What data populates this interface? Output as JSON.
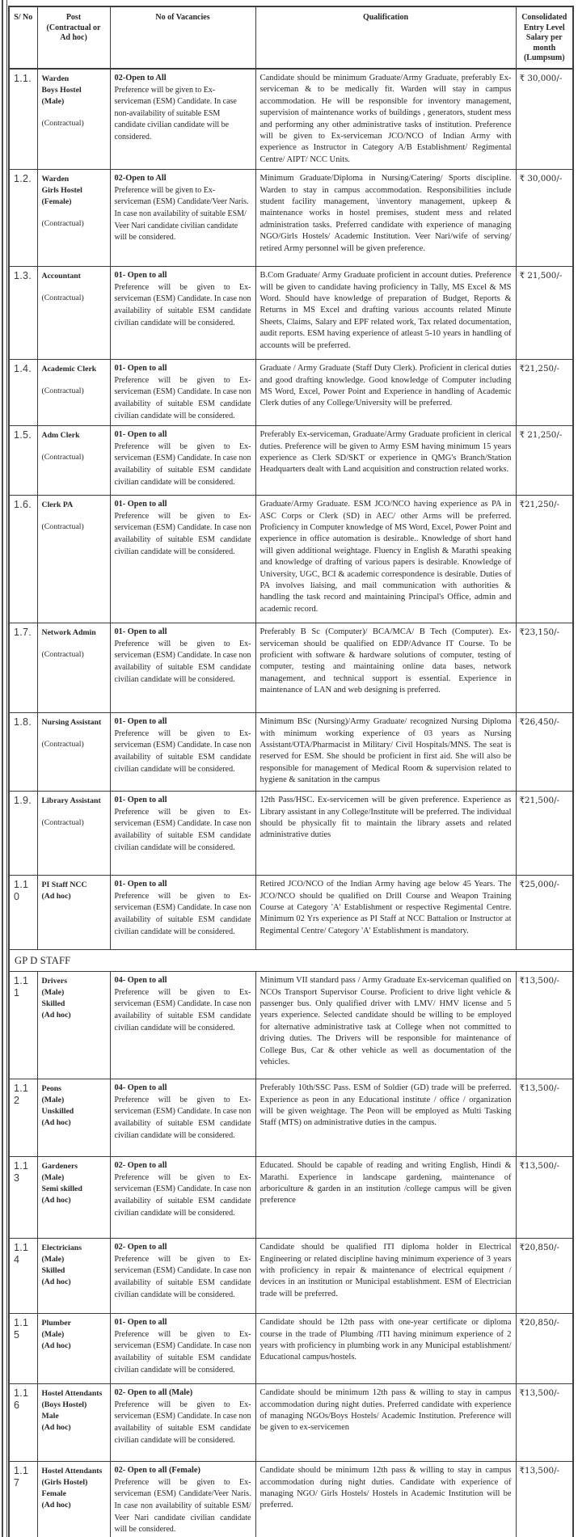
{
  "table": {
    "headers": {
      "sno": "S/ No",
      "post": "Post\n(Contractual or\nAd hoc)",
      "vacancies": "No of Vacancies",
      "qualification": "Qualification",
      "salary": "Consolidated\nEntry Level\nSalary per\nmonth\n(Lumpsum)"
    },
    "rows": [
      {
        "sno": "1.1.",
        "post": {
          "lines": [
            "Warden",
            "Boys Hostel",
            "(Male)"
          ],
          "note": "(Contractual)"
        },
        "vacancies": {
          "title": "02-Open to All",
          "body": "Preference will be given to Ex-serviceman (ESM) Candidate. In case non-availability of suitable ESM candidate civilian candidate will be considered."
        },
        "qualification": "Candidate should be minimum Graduate/Army Graduate, preferably Ex-serviceman & to be medically fit. Warden will stay in campus accommodation.  He will be responsible for inventory management, supervision of maintenance works of buildings , generators, student mess and performing any other administrative tasks of institution. Preference will be given to Ex-serviceman JCO/NCO of Indian Army with experience as Instructor in Category A/B Establishment/ Regimental Centre/ AIPT/ NCC Units.",
        "salary": "₹ 30,000/-"
      },
      {
        "sno": "1.2.",
        "post": {
          "lines": [
            "Warden",
            "Girls Hostel",
            "(Female)"
          ],
          "note": "(Contractual)"
        },
        "vacancies": {
          "title": "02-Open to All",
          "body": "Preference will be given to Ex-serviceman (ESM) Candidate/Veer Naris.  In case non availability of suitable ESM/ Veer Nari candidate civilian candidate will be considered."
        },
        "qualification": "Minimum Graduate/Diploma in Nursing/Catering/ Sports discipline. Warden to stay in campus accommodation. Responsibilities include student facility management, \\inventory management, upkeep & maintenance works in hostel premises, student mess and related administration tasks.  Preferred candidate with experience of managing NGO/Girls Hostels/ Academic Institution.  Veer Nari/wife of serving/ retired Army personnel will be given preference.",
        "salary": "₹ 30,000/-"
      },
      {
        "sno": "1.3.",
        "post": {
          "lines": [
            "Accountant"
          ],
          "note": "(Contractual)"
        },
        "vacancies": {
          "title": "01- Open to all",
          "body": "Preference will be given to Ex-serviceman (ESM) Candidate.  In case non availability of suitable ESM candidate civilian candidate will be considered."
        },
        "qualification": "B.Com Graduate/ Army Graduate proficient in account duties. Preference will be given to  candidate having proficiency in Tally, MS Excel & MS Word.  Should have knowledge of preparation of Budget, Reports & Returns in MS Excel and drafting various accounts related Minute Sheets, Claims, Salary and EPF related work, Tax related documentation, audit reports. ESM having experience of atleast 5-10 years in handling of accounts will be preferred.",
        "salary": "₹ 21,500/-"
      },
      {
        "sno": "1.4.",
        "post": {
          "lines": [
            "Academic Clerk"
          ],
          "note": "(Contractual)"
        },
        "vacancies": {
          "title": "01- Open to all",
          "body": "Preference will be given to Ex-serviceman (ESM) Candidate.  In case non availability of suitable ESM candidate civilian candidate will be considered."
        },
        "qualification": "Graduate / Army Graduate (Staff Duty Clerk).  Proficient in clerical duties and good drafting knowledge.  Good knowledge of Computer including MS Word, Excel, Power Point and  Experience in handling of Academic Clerk duties of any College/University will be preferred.",
        "salary": "₹21,250/-"
      },
      {
        "sno": "1.5.",
        "post": {
          "lines": [
            "Adm Clerk"
          ],
          "note": "(Contractual)"
        },
        "vacancies": {
          "title": "01- Open to all",
          "body": "Preference will be given to Ex-serviceman (ESM) Candidate.  In case non availability of suitable ESM candidate civilian candidate will be considered."
        },
        "qualification": "Preferably Ex-serviceman, Graduate/Army Graduate proficient in clerical duties.  Preference will be given to Army ESM having minimum 15 years experience as Clerk SD/SKT or experience in QMG's Branch/Station Headquarters dealt with Land acquisition and construction related works.",
        "salary": "₹ 21,250/-"
      },
      {
        "sno": "1.6.",
        "post": {
          "lines": [
            "Clerk PA"
          ],
          "note": "(Contractual)"
        },
        "vacancies": {
          "title": "01- Open to all",
          "body": "Preference will be given to Ex-serviceman (ESM) Candidate.  In case non availability of suitable ESM candidate civilian candidate will be considered."
        },
        "qualification": "Graduate/Army Graduate. ESM JCO/NCO having experience as PA in ASC Corps or Clerk (SD) in AEC/ other Arms will be preferred. Proficiency in Computer knowledge of MS Word, Excel, Power Point and experience in office automation is desirable..  Knowledge of short hand will given additional weightage. Fluency in English & Marathi speaking and knowledge of drafting of various papers is desirable. Knowledge of University, UGC, BCI & academic correspondence is desirable.  Duties of PA involves liaising, and mail communication with authorities &  handling the task record and maintaining Principal's Office, admin and academic record.",
        "salary": "₹21,250/-"
      },
      {
        "sno": "1.7.",
        "post": {
          "lines": [
            "Network Admin"
          ],
          "note": "(Contractual)"
        },
        "vacancies": {
          "title": "01- Open to all",
          "body": "Preference will be given to Ex-serviceman (ESM) Candidate.  In case non availability of suitable ESM candidate civilian candidate will be considered."
        },
        "qualification": "Preferably B Sc (Computer)/ BCA/MCA/ B Tech (Computer). Ex-serviceman should be qualified on EDP/Advance IT Course. To be proficient with software & hardware solutions of computer, testing of computer, testing and maintaining online data bases, network management, and technical support is essential.  Experience in maintenance of LAN and web designing is preferred.",
        "salary": "₹23,150/-"
      },
      {
        "sno": "1.8.",
        "post": {
          "lines": [
            "Nursing Assistant"
          ],
          "note": "(Contractual)"
        },
        "vacancies": {
          "title": "01- Open to all",
          "body": "Preference will be given to Ex-serviceman (ESM) Candidate.  In case non availability of suitable ESM candidate civilian candidate will be considered."
        },
        "qualification": "Minimum BSc (Nursing)/Army Graduate/ recognized Nursing Diploma with minimum working experience of 03 years as Nursing Assistant/OTA/Pharmacist in Military/ Civil Hospitals/MNS.  The seat is reserved for ESM.   She should be proficient in first aid. She will also be responsible for management of Medical Room & supervision related to hygiene & sanitation in the campus",
        "salary": "₹26,450/-"
      },
      {
        "sno": "1.9.",
        "post": {
          "lines": [
            "Library Assistant"
          ],
          "note": "(Contractual)"
        },
        "vacancies": {
          "title": "01- Open to all",
          "body": "Preference will be given to Ex-serviceman (ESM) Candidate.  In case non availability of suitable ESM candidate civilian candidate will be considered."
        },
        "qualification": "12th Pass/HSC.  Ex-servicemen will be given preference. Experience as Library assistant in any College/Institute will be preferred.  The individual should be physically fit to maintain the library assets and related administrative duties",
        "salary": "₹21,500/-"
      },
      {
        "sno": "1.10",
        "post": {
          "lines": [
            "PI Staff NCC",
            "(Ad hoc)"
          ],
          "note": null
        },
        "vacancies": {
          "title": "01- Open to all",
          "body": "Preference will be given to Ex-serviceman (ESM) Candidate.  In case non availability of suitable ESM candidate civilian candidate will be considered."
        },
        "qualification": "Retired JCO/NCO of the Indian Army having age below 45 Years. The JCO/NCO should be qualified on Drill Course and Weapon Training Course at Category 'A' Establishment or respective Regimental Centre.  Minimum 02 Yrs experience as   PI Staff  at NCC Battalion or Instructor at Regimental Centre/ Category 'A' Establishment is mandatory.",
        "salary": "₹25,000/-"
      },
      {
        "section": "GP D STAFF"
      },
      {
        "sno": "1.11",
        "post": {
          "lines": [
            "Drivers",
            "(Male)",
            "Skilled",
            "(Ad hoc)"
          ],
          "note": null
        },
        "vacancies": {
          "title": "04- Open to all",
          "body": "Preference will be given to Ex-serviceman (ESM) Candidate.  In case non availability of suitable ESM candidate civilian candidate will be considered."
        },
        "qualification": "Minimum VII standard pass / Army Graduate  Ex-serviceman qualified on NCOs Transport Supervisor Course.  Proficient to drive light vehicle &  passenger bus.  Only qualified driver with LMV/ HMV license and 5 years experience. Selected candidate should be willing to be employed for alternative administrative task at College when not committed to driving duties.  The Drivers will be responsible for maintenance of College Bus, Car & other vehicle as well as documentation of the vehicles.",
        "salary": "₹13,500/-"
      },
      {
        "sno": "1.12",
        "post": {
          "lines": [
            "Peons",
            "(Male)",
            "Unskilled",
            "(Ad hoc)"
          ],
          "note": null
        },
        "vacancies": {
          "title": "04- Open to all",
          "body": "Preference will be given to Ex-serviceman (ESM) Candidate.  In case non availability of suitable ESM candidate civilian candidate will be considered."
        },
        "qualification": "Preferably 10th/SSC Pass.  ESM of Soldier (GD) trade will be preferred. Experience as peon in any Educational institute / office / organization will be given weightage. The Peon will be employed as Multi Tasking Staff (MTS) on administrative duties in the campus.",
        "salary": "₹13,500/-"
      },
      {
        "sno": "1.13",
        "post": {
          "lines": [
            "Gardeners",
            "(Male)",
            "Semi skilled",
            "(Ad hoc)"
          ],
          "note": null
        },
        "vacancies": {
          "title": "02- Open to all",
          "body": "Preference will be given to Ex-serviceman (ESM) Candidate.  In case non availability of suitable ESM candidate civilian candidate will be considered."
        },
        "qualification": "Educated. Should be capable of reading and writing English, Hindi & Marathi. Experience in landscape gardening, maintenance of arboriculture & garden in an institution /college campus will be given preference",
        "salary": "₹13,500/-"
      },
      {
        "sno": "1.14",
        "post": {
          "lines": [
            "Electricians",
            "(Male)",
            "Skilled",
            "(Ad hoc)"
          ],
          "note": null
        },
        "vacancies": {
          "title": "02- Open to all",
          "body": "Preference will be given to Ex-serviceman (ESM) Candidate.  In case non availability of suitable ESM candidate civilian candidate will be considered."
        },
        "qualification": "Candidate should be qualified ITI diploma holder in Electrical Engineering or related discipline having minimum experience of 3 years  with proficiency in repair & maintenance of electrical equipment / devices in an institution or Municipal establishment. ESM of Electrician trade will be preferred.",
        "salary": "₹20,850/-"
      },
      {
        "sno": "1.15",
        "post": {
          "lines": [
            "Plumber",
            "(Male)",
            "(Ad hoc)"
          ],
          "note": null
        },
        "vacancies": {
          "title": "01- Open to all",
          "body": "Preference will be given to Ex-serviceman (ESM) Candidate.  In case non availability of suitable ESM candidate civilian candidate will be considered."
        },
        "qualification": "Candidate should be  12th pass with one-year certificate or diploma course in the trade of Plumbing /ITI having minimum experience of  2 years with proficiency in plumbing work in any Municipal establishment/ Educational campus/hostels.",
        "salary": "₹20,850/-"
      },
      {
        "sno": "1.16",
        "post": {
          "lines": [
            "Hostel Attendants",
            "(Boys Hostel)",
            "Male",
            "(Ad hoc)"
          ],
          "note": null
        },
        "vacancies": {
          "title": "02- Open to all (Male)",
          "body": "Preference will be given to Ex-serviceman (ESM) Candidate.  In case non availability of suitable ESM candidate civilian candidate will be considered."
        },
        "qualification": "Candidate should be minimum 12th pass & willing to stay in campus accommodation during night duties.  Preferred candidate with experience of managing NGOs/Boys Hostels/ Academic Institution. Preference will be given to ex-servicemen",
        "salary": "₹13,500/-"
      },
      {
        "sno": "1.17",
        "post": {
          "lines": [
            "Hostel Attendants",
            "(Girls Hostel)",
            "Female",
            "(Ad hoc)"
          ],
          "note": null
        },
        "vacancies": {
          "title": "02- Open to all (Female)",
          "body": "Preference will be given to Ex-serviceman (ESM) Candidate/Veer Naris.  In case non availability of suitable ESM/ Veer Nari  candidate civilian candidate will be considered."
        },
        "qualification": "Candidate should be minimum 12th pass & willing to stay in campus accommodation during night duties.  Candidate with experience of managing NGO/ Girls Hostels/ Hostels in Academic Institution will be preferred.",
        "salary": "₹13,500/-"
      }
    ]
  }
}
